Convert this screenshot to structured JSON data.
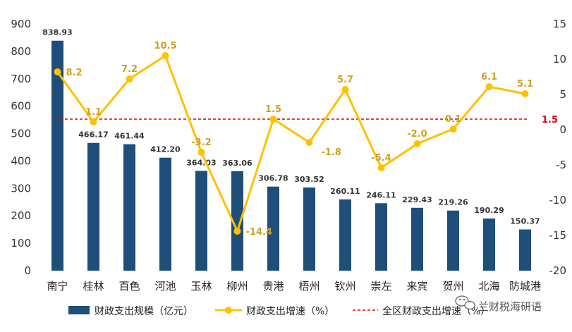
{
  "chart_data": {
    "type": "bar",
    "categories": [
      "南宁",
      "桂林",
      "百色",
      "河池",
      "玉林",
      "柳州",
      "贵港",
      "梧州",
      "钦州",
      "崇左",
      "来宾",
      "贺州",
      "北海",
      "防城港"
    ],
    "series": [
      {
        "name": "财政支出规模（亿元）",
        "type": "bar",
        "axis": "left",
        "values": [
          838.93,
          466.17,
          461.44,
          412.2,
          364.03,
          363.06,
          306.78,
          303.52,
          260.11,
          246.11,
          229.43,
          219.26,
          190.29,
          150.37
        ],
        "labels": [
          "838.93",
          "466.17",
          "461.44",
          "412.20",
          "364.03",
          "363.06",
          "306.78",
          "303.52",
          "260.11",
          "246.11",
          "229.43",
          "219.26",
          "190.29",
          "150.37"
        ]
      },
      {
        "name": "财政支出增速（%）",
        "type": "line",
        "axis": "right",
        "values": [
          8.2,
          1.1,
          7.2,
          10.5,
          -3.2,
          -14.4,
          1.5,
          -1.8,
          5.7,
          -5.4,
          -2.0,
          0.1,
          6.1,
          5.1
        ],
        "labels": [
          "8.2",
          "1.1",
          "7.2",
          "10.5",
          "-3.2",
          "-14.4",
          "1.5",
          "-1.8",
          "5.7",
          "-5.4",
          "-2.0",
          "0.1",
          "6.1",
          "5.1"
        ]
      }
    ],
    "reference_line": {
      "name": "全区财政支出增速（%）",
      "value": 1.5,
      "label": "1.5",
      "axis": "right"
    },
    "y_left": {
      "ylim": [
        0,
        900
      ],
      "ticks": [
        "0",
        "100",
        "200",
        "300",
        "400",
        "500",
        "600",
        "700",
        "800",
        "900"
      ]
    },
    "y_right": {
      "ylim": [
        -20,
        15
      ],
      "ticks": [
        "-20",
        "-15",
        "-10",
        "-5",
        "0",
        "5",
        "10",
        "15"
      ]
    },
    "legend_position": "bottom",
    "grid": false
  },
  "colors": {
    "bar": "#1F4E79",
    "line": "#FFC000",
    "line_label": "#C9A227",
    "ref": "#E00000"
  },
  "watermark": {
    "text": "兰财税海研语",
    "icon": "wechat-icon"
  }
}
